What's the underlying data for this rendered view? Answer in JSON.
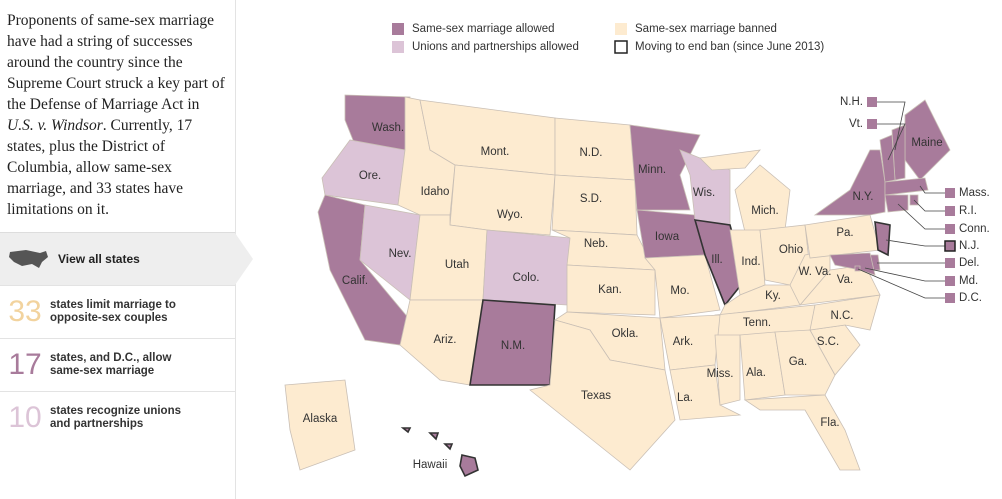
{
  "sidebar": {
    "intro": [
      "Proponents of same-sex marriage have had a string of successes around the country since the Supreme Court struck a key part of the Defense of Marriage Act in ",
      "U.S. v. Windsor",
      ". Currently, 17 states, plus the District of Columbia, allow same-sex marriage, and 33 states have limitations on it."
    ],
    "nav": "View all states",
    "stats": [
      {
        "number": "33",
        "text": "states limit marriage to opposite-sex couples",
        "status": "banned"
      },
      {
        "number": "17",
        "text": "states, and D.C., allow same-sex marriage",
        "status": "allowed"
      },
      {
        "number": "10",
        "text": "states recognize unions and partnerships",
        "status": "unions"
      }
    ]
  },
  "map": {
    "colors": {
      "allowed": "#a87b9b",
      "unions": "#dcc4d7",
      "banned": "#fdebd0",
      "stat_banned": "#f2d39e"
    },
    "legend": [
      {
        "label": "Same-sex marriage allowed",
        "status": "allowed"
      },
      {
        "label": "Same-sex marriage banned",
        "status": "banned"
      },
      {
        "label": "Unions and partnerships allowed",
        "status": "unions"
      },
      {
        "label": "Moving to end ban (since June 2013)",
        "status": "moving"
      }
    ],
    "states": [
      {
        "name": "Wash.",
        "status": "allowed"
      },
      {
        "name": "Ore.",
        "status": "unions"
      },
      {
        "name": "Calif.",
        "status": "allowed"
      },
      {
        "name": "Nev.",
        "status": "unions"
      },
      {
        "name": "Idaho",
        "status": "banned"
      },
      {
        "name": "Mont.",
        "status": "banned"
      },
      {
        "name": "Wyo.",
        "status": "banned"
      },
      {
        "name": "Utah",
        "status": "banned"
      },
      {
        "name": "Ariz.",
        "status": "banned"
      },
      {
        "name": "Colo.",
        "status": "unions"
      },
      {
        "name": "N.M.",
        "status": "allowed",
        "moving": true
      },
      {
        "name": "N.D.",
        "status": "banned"
      },
      {
        "name": "S.D.",
        "status": "banned"
      },
      {
        "name": "Neb.",
        "status": "banned"
      },
      {
        "name": "Kan.",
        "status": "banned"
      },
      {
        "name": "Okla.",
        "status": "banned"
      },
      {
        "name": "Texas",
        "status": "banned"
      },
      {
        "name": "Minn.",
        "status": "allowed"
      },
      {
        "name": "Iowa",
        "status": "allowed"
      },
      {
        "name": "Mo.",
        "status": "banned"
      },
      {
        "name": "Wis.",
        "status": "unions"
      },
      {
        "name": "Ill.",
        "status": "allowed",
        "moving": true
      },
      {
        "name": "Mich.",
        "status": "banned"
      },
      {
        "name": "Ind.",
        "status": "banned"
      },
      {
        "name": "Ohio",
        "status": "banned"
      },
      {
        "name": "Ky.",
        "status": "banned"
      },
      {
        "name": "Tenn.",
        "status": "banned"
      },
      {
        "name": "Ark.",
        "status": "banned"
      },
      {
        "name": "La.",
        "status": "banned"
      },
      {
        "name": "Miss.",
        "status": "banned"
      },
      {
        "name": "Ala.",
        "status": "banned"
      },
      {
        "name": "Ga.",
        "status": "banned"
      },
      {
        "name": "Fla.",
        "status": "banned"
      },
      {
        "name": "S.C.",
        "status": "banned"
      },
      {
        "name": "N.C.",
        "status": "banned"
      },
      {
        "name": "Va.",
        "status": "banned"
      },
      {
        "name": "W. Va.",
        "status": "banned"
      },
      {
        "name": "Pa.",
        "status": "banned"
      },
      {
        "name": "N.Y.",
        "status": "allowed"
      },
      {
        "name": "Maine",
        "status": "allowed"
      },
      {
        "name": "N.H.",
        "status": "allowed"
      },
      {
        "name": "Vt.",
        "status": "allowed"
      },
      {
        "name": "Mass.",
        "status": "allowed"
      },
      {
        "name": "R.I.",
        "status": "allowed"
      },
      {
        "name": "Conn.",
        "status": "allowed"
      },
      {
        "name": "N.J.",
        "status": "allowed",
        "moving": true
      },
      {
        "name": "Del.",
        "status": "allowed"
      },
      {
        "name": "Md.",
        "status": "allowed"
      },
      {
        "name": "D.C.",
        "status": "allowed"
      },
      {
        "name": "Alaska",
        "status": "banned"
      },
      {
        "name": "Hawaii",
        "status": "allowed",
        "moving": true
      }
    ]
  }
}
